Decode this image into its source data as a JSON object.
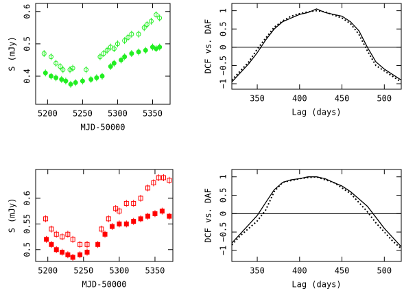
{
  "chart_data": [
    {
      "type": "scatter",
      "xlabel": "MJD-50000",
      "ylabel": "S (mJy)",
      "xlim": [
        5183,
        5375
      ],
      "xticks": [
        5200,
        5250,
        5300,
        5350
      ],
      "ylim": [
        0.313,
        0.625
      ],
      "yticks": [
        0.4,
        0.5,
        0.6
      ],
      "series": [
        {
          "color": "#22ee22",
          "marker": "circle",
          "filled": false,
          "x": [
            5195,
            5205,
            5212,
            5218,
            5222,
            5232,
            5236,
            5255,
            5275,
            5280,
            5285,
            5290,
            5295,
            5300,
            5310,
            5315,
            5320,
            5330,
            5338,
            5342,
            5348,
            5355,
            5360
          ],
          "values": [
            0.47,
            0.46,
            0.44,
            0.43,
            0.42,
            0.42,
            0.425,
            0.42,
            0.46,
            0.47,
            0.48,
            0.49,
            0.485,
            0.5,
            0.51,
            0.52,
            0.53,
            0.53,
            0.55,
            0.56,
            0.57,
            0.59,
            0.58
          ]
        },
        {
          "color": "#22ee22",
          "marker": "circle",
          "filled": true,
          "x": [
            5197,
            5205,
            5212,
            5220,
            5226,
            5233,
            5240,
            5250,
            5262,
            5270,
            5278,
            5290,
            5295,
            5305,
            5310,
            5320,
            5330,
            5340,
            5350,
            5355,
            5360
          ],
          "values": [
            0.41,
            0.4,
            0.395,
            0.39,
            0.385,
            0.375,
            0.38,
            0.385,
            0.39,
            0.395,
            0.4,
            0.43,
            0.44,
            0.45,
            0.46,
            0.47,
            0.475,
            0.48,
            0.49,
            0.485,
            0.49
          ]
        }
      ]
    },
    {
      "type": "line",
      "xlabel": "Lag (days)",
      "ylabel": "DCF vs. DAF",
      "xlim": [
        320,
        520
      ],
      "xticks": [
        350,
        400,
        450,
        500
      ],
      "ylim": [
        -1.15,
        1.2
      ],
      "yticks": [
        {
          "value": -1,
          "label": "−1"
        },
        {
          "value": -0.5,
          "label": "−0.5"
        },
        0,
        0.5,
        1
      ],
      "reference_line": 0,
      "x": [
        320,
        330,
        340,
        350,
        360,
        370,
        380,
        390,
        400,
        410,
        420,
        430,
        440,
        450,
        460,
        470,
        480,
        490,
        500,
        510,
        520
      ],
      "series": [
        {
          "color": "#000000",
          "dash": "solid",
          "values": [
            -0.95,
            -0.7,
            -0.45,
            -0.15,
            0.2,
            0.5,
            0.7,
            0.8,
            0.9,
            0.95,
            1.05,
            0.95,
            0.9,
            0.85,
            0.7,
            0.45,
            0.0,
            -0.4,
            -0.6,
            -0.75,
            -0.9
          ]
        },
        {
          "color": "#000000",
          "dash": "dotted",
          "values": [
            -0.9,
            -0.65,
            -0.4,
            -0.05,
            0.25,
            0.55,
            0.72,
            0.85,
            0.92,
            0.97,
            1.0,
            0.97,
            0.88,
            0.8,
            0.65,
            0.35,
            -0.1,
            -0.5,
            -0.65,
            -0.8,
            -0.95
          ]
        }
      ]
    },
    {
      "type": "scatter",
      "xlabel": "MJD-50000",
      "ylabel": "S (mJy)",
      "xlim": [
        5183,
        5375
      ],
      "xticks": [
        5200,
        5250,
        5300,
        5350
      ],
      "ylim": [
        0.477,
        0.656
      ],
      "yticks": [
        0.5,
        0.55,
        0.6
      ],
      "series": [
        {
          "color": "#ff0000",
          "marker": "square",
          "filled": false,
          "x": [
            5197,
            5205,
            5212,
            5220,
            5228,
            5235,
            5245,
            5255,
            5275,
            5285,
            5295,
            5300,
            5310,
            5320,
            5330,
            5340,
            5348,
            5355,
            5362,
            5370
          ],
          "values": [
            0.56,
            0.54,
            0.53,
            0.525,
            0.53,
            0.52,
            0.51,
            0.51,
            0.54,
            0.56,
            0.58,
            0.575,
            0.59,
            0.59,
            0.6,
            0.62,
            0.63,
            0.64,
            0.64,
            0.635
          ]
        },
        {
          "color": "#ff0000",
          "marker": "square",
          "filled": true,
          "x": [
            5198,
            5205,
            5212,
            5220,
            5228,
            5235,
            5245,
            5255,
            5270,
            5280,
            5290,
            5300,
            5310,
            5320,
            5330,
            5340,
            5350,
            5360,
            5370
          ],
          "values": [
            0.52,
            0.51,
            0.5,
            0.495,
            0.49,
            0.485,
            0.49,
            0.495,
            0.51,
            0.53,
            0.545,
            0.55,
            0.55,
            0.555,
            0.56,
            0.565,
            0.57,
            0.575,
            0.565
          ]
        }
      ]
    },
    {
      "type": "line",
      "xlabel": "Lag (days)",
      "ylabel": "DCF vs. DAF",
      "xlim": [
        320,
        520
      ],
      "xticks": [
        350,
        400,
        450,
        500
      ],
      "ylim": [
        -1.3,
        1.2
      ],
      "yticks": [
        {
          "value": -1,
          "label": "−1"
        },
        {
          "value": -0.5,
          "label": "−0.5"
        },
        0,
        0.5,
        1
      ],
      "reference_line": 0,
      "x": [
        320,
        330,
        340,
        350,
        360,
        370,
        380,
        390,
        400,
        410,
        420,
        430,
        440,
        450,
        460,
        470,
        480,
        490,
        500,
        510,
        520
      ],
      "series": [
        {
          "color": "#000000",
          "dash": "solid",
          "values": [
            -0.8,
            -0.55,
            -0.3,
            -0.05,
            0.3,
            0.65,
            0.85,
            0.92,
            0.95,
            1.0,
            1.0,
            0.95,
            0.85,
            0.75,
            0.6,
            0.4,
            0.2,
            -0.1,
            -0.4,
            -0.65,
            -0.9
          ]
        },
        {
          "color": "#000000",
          "dash": "dotted",
          "values": [
            -0.85,
            -0.6,
            -0.4,
            -0.2,
            0.1,
            0.6,
            0.85,
            0.9,
            0.95,
            0.98,
            1.0,
            0.92,
            0.85,
            0.7,
            0.55,
            0.3,
            0.05,
            -0.25,
            -0.5,
            -0.75,
            -0.95
          ]
        }
      ]
    }
  ]
}
